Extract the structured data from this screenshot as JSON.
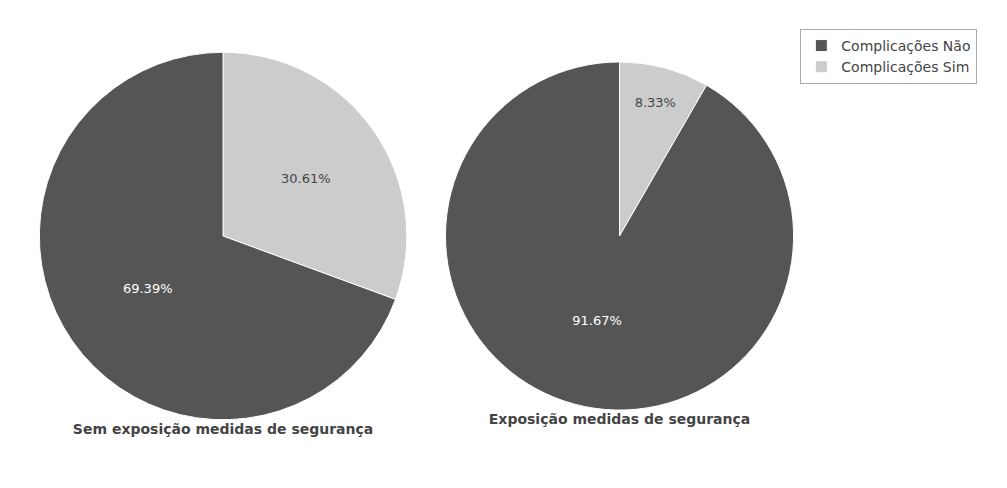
{
  "chart_data": [
    {
      "type": "pie",
      "title": "Sem exposição medidas de segurança",
      "categories": [
        "Complicações Sim",
        "Complicações Não"
      ],
      "values": [
        30.61,
        69.39
      ],
      "value_labels": [
        "30.61%",
        "69.39%"
      ],
      "colors": [
        "#cccccc",
        "#555555"
      ],
      "data_labels": true,
      "legend": "upper right"
    },
    {
      "type": "pie",
      "title": "Exposição medidas de segurança",
      "categories": [
        "Complicações Sim",
        "Complicações Não"
      ],
      "values": [
        8.33,
        91.67
      ],
      "value_labels": [
        "8.33%",
        "91.67%"
      ],
      "colors": [
        "#cccccc",
        "#555555"
      ],
      "data_labels": true,
      "legend": "upper right"
    }
  ]
}
